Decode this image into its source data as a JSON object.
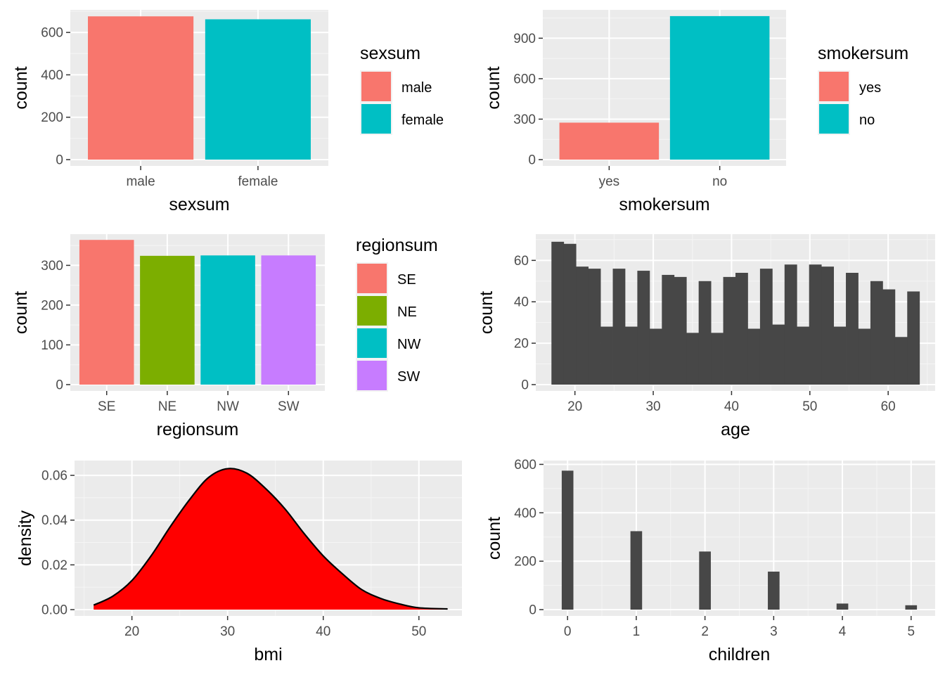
{
  "colors": {
    "panel": "#EBEBEB",
    "grid_major": "#FFFFFF",
    "grid_minor": "#F5F5F5",
    "tick": "#333333",
    "dark_bar": "#474747",
    "density_fill": "#FF0000",
    "density_line": "#000000"
  },
  "chart_data": [
    {
      "id": "sex",
      "type": "bar",
      "categories": [
        "male",
        "female"
      ],
      "values": [
        676,
        662
      ],
      "fills": [
        "#F8766D",
        "#00BFC4"
      ],
      "xlabel": "sexsum",
      "ylabel": "count",
      "yticks": [
        0,
        200,
        400,
        600
      ],
      "ylim": [
        0,
        700
      ],
      "legend": {
        "title": "sexsum",
        "entries": [
          "male",
          "female"
        ],
        "position": "right"
      },
      "grid": true
    },
    {
      "id": "smoker",
      "type": "bar",
      "categories": [
        "yes",
        "no"
      ],
      "values": [
        274,
        1064
      ],
      "fills": [
        "#F8766D",
        "#00BFC4"
      ],
      "xlabel": "smokersum",
      "ylabel": "count",
      "yticks": [
        0,
        300,
        600,
        900
      ],
      "ylim": [
        0,
        1100
      ],
      "legend": {
        "title": "smokersum",
        "entries": [
          "yes",
          "no"
        ],
        "position": "right"
      },
      "grid": true
    },
    {
      "id": "region",
      "type": "bar",
      "categories": [
        "SE",
        "NE",
        "NW",
        "SW"
      ],
      "values": [
        364,
        324,
        325,
        325
      ],
      "fills": [
        "#F8766D",
        "#7CAE00",
        "#00BFC4",
        "#C77CFF"
      ],
      "xlabel": "regionsum",
      "ylabel": "count",
      "yticks": [
        0,
        100,
        200,
        300
      ],
      "ylim": [
        0,
        375
      ],
      "legend": {
        "title": "regionsum",
        "entries": [
          "SE",
          "NE",
          "NW",
          "SW"
        ],
        "position": "right"
      },
      "grid": true
    },
    {
      "id": "age",
      "type": "bar",
      "subtype": "histogram",
      "x_start": 17,
      "x_end": 64,
      "values": [
        69,
        68,
        57,
        56,
        28,
        56,
        28,
        55,
        27,
        53,
        52,
        25,
        50,
        25,
        52,
        54,
        27,
        56,
        29,
        58,
        28,
        58,
        57,
        28,
        54,
        27,
        50,
        46,
        23,
        45
      ],
      "xlabel": "age",
      "ylabel": "count",
      "xticks": [
        20,
        30,
        40,
        50,
        60
      ],
      "xlim": [
        15,
        66
      ],
      "yticks": [
        0,
        20,
        40,
        60
      ],
      "ylim": [
        0,
        72
      ],
      "grid": true
    },
    {
      "id": "bmi",
      "type": "area",
      "subtype": "density",
      "x": [
        16,
        18,
        20,
        22,
        24,
        26,
        28,
        30,
        32,
        34,
        36,
        38,
        40,
        42,
        44,
        46,
        48,
        50,
        53
      ],
      "y": [
        0.002,
        0.006,
        0.013,
        0.024,
        0.037,
        0.049,
        0.059,
        0.063,
        0.061,
        0.054,
        0.045,
        0.034,
        0.024,
        0.016,
        0.009,
        0.005,
        0.0025,
        0.0008,
        0.0003
      ],
      "xlabel": "bmi",
      "ylabel": "density",
      "xticks": [
        20,
        30,
        40,
        50
      ],
      "xlim": [
        14,
        54.5
      ],
      "yticks": [
        0.0,
        0.02,
        0.04,
        0.06
      ],
      "ytick_labels": [
        "0.00",
        "0.02",
        "0.04",
        "0.06"
      ],
      "ylim": [
        0,
        0.066
      ],
      "grid": true
    },
    {
      "id": "children",
      "type": "bar",
      "subtype": "histogram",
      "x": [
        0,
        1,
        2,
        3,
        4,
        5
      ],
      "values": [
        574,
        324,
        240,
        157,
        25,
        18
      ],
      "xlabel": "children",
      "ylabel": "count",
      "xticks": [
        0,
        1,
        2,
        3,
        4,
        5
      ],
      "xlim": [
        -0.35,
        5.35
      ],
      "yticks": [
        0,
        200,
        400,
        600
      ],
      "ylim": [
        0,
        610
      ],
      "grid": true
    }
  ]
}
